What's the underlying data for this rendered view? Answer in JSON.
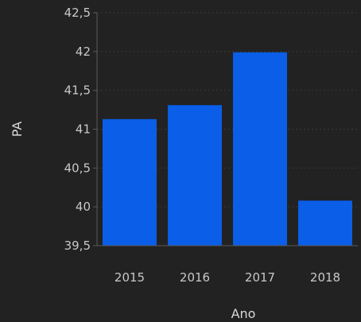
{
  "chart_data": {
    "type": "bar",
    "title": "",
    "xlabel": "Ano",
    "ylabel": "PA",
    "categories": [
      "2015",
      "2016",
      "2017",
      "2018"
    ],
    "values": [
      41.13,
      41.31,
      41.99,
      40.08
    ],
    "ylim": [
      39.5,
      42.5
    ],
    "yticks": [
      39.5,
      40,
      40.5,
      41,
      41.5,
      42,
      42.5
    ],
    "ytick_labels": [
      "39,5",
      "40",
      "40,5",
      "41",
      "41,5",
      "42",
      "42,5"
    ],
    "grid": true,
    "legend": "none",
    "colors": {
      "background": "#222222",
      "bar": "#0a5ee8",
      "grid": "#3a3a3a",
      "axis": "#5a5a5a",
      "text": "#c8c8c8"
    }
  }
}
